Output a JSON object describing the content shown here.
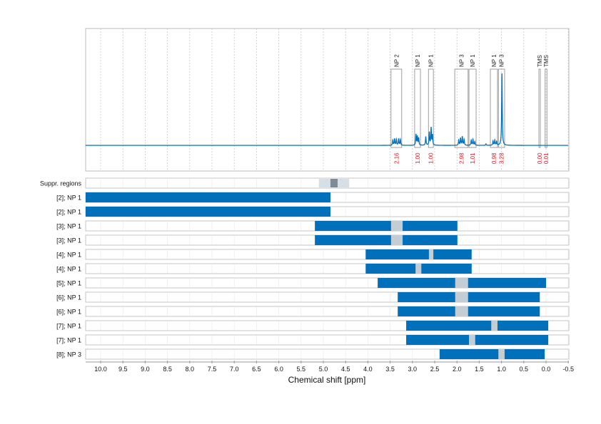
{
  "chart_data": {
    "type": "line",
    "xlabel": "Chemical shift [ppm]",
    "xlim": [
      10.34,
      -0.5
    ],
    "x_reversed": true,
    "x_ticks": [
      "10.0",
      "9.5",
      "9.0",
      "8.5",
      "8.0",
      "7.5",
      "7.0",
      "6.5",
      "6.0",
      "5.5",
      "5.0",
      "4.5",
      "4.0",
      "3.5",
      "3.0",
      "2.5",
      "2.0",
      "1.5",
      "1.0",
      "0.5",
      "0.0",
      "-0.5"
    ],
    "grid": true,
    "colors": {
      "spectrum": "#0070bb",
      "bar": "#0070bb",
      "gap": "#c3cdd4",
      "suppr_light": "#d6dee6",
      "suppr_dark": "#7b8b97",
      "integral": "#e8101a"
    },
    "spectrum_peaks": [
      {
        "ppm": 3.44,
        "height": 0.07
      },
      {
        "ppm": 3.4,
        "height": 0.09
      },
      {
        "ppm": 3.36,
        "height": 0.08
      },
      {
        "ppm": 3.31,
        "height": 0.09
      },
      {
        "ppm": 3.27,
        "height": 0.08
      },
      {
        "ppm": 2.92,
        "height": 0.15
      },
      {
        "ppm": 2.89,
        "height": 0.12
      },
      {
        "ppm": 2.86,
        "height": 0.1
      },
      {
        "ppm": 2.7,
        "height": 0.12
      },
      {
        "ppm": 2.62,
        "height": 0.18
      },
      {
        "ppm": 2.58,
        "height": 0.24
      },
      {
        "ppm": 2.55,
        "height": 0.14
      },
      {
        "ppm": 1.96,
        "height": 0.07
      },
      {
        "ppm": 1.92,
        "height": 0.1
      },
      {
        "ppm": 1.88,
        "height": 0.12
      },
      {
        "ppm": 1.84,
        "height": 0.08
      },
      {
        "ppm": 1.68,
        "height": 0.07
      },
      {
        "ppm": 1.64,
        "height": 0.08
      },
      {
        "ppm": 1.6,
        "height": 0.05
      },
      {
        "ppm": 1.35,
        "height": 0.02
      },
      {
        "ppm": 1.19,
        "height": 0.06
      },
      {
        "ppm": 1.15,
        "height": 0.07
      },
      {
        "ppm": 1.11,
        "height": 0.05
      },
      {
        "ppm": 0.99,
        "height": 1.0
      }
    ],
    "integration_regions": [
      {
        "label": "NP 2",
        "from": 3.48,
        "to": 3.24,
        "integral": "2.16"
      },
      {
        "label": "NP 1",
        "from": 2.95,
        "to": 2.82,
        "integral": "1.00"
      },
      {
        "label": "NP 1",
        "from": 2.64,
        "to": 2.53,
        "integral": "1.00"
      },
      {
        "label": "NP 3",
        "from": 2.05,
        "to": 1.75,
        "integral": "2.98"
      },
      {
        "label": "NP 1",
        "from": 1.73,
        "to": 1.57,
        "integral": "1.01"
      },
      {
        "label": "NP 1",
        "from": 1.25,
        "to": 1.09,
        "integral": "0.98"
      },
      {
        "label": "NP 3",
        "from": 1.07,
        "to": 0.93,
        "integral": "3.28"
      },
      {
        "label": "TMS",
        "from": 0.16,
        "to": 0.13,
        "integral": "0.00"
      },
      {
        "label": "TMS",
        "from": 0.02,
        "to": -0.02,
        "integral": "0.01"
      }
    ],
    "suppressed_regions": {
      "label": "Suppr. regions",
      "outer": [
        5.1,
        4.42
      ],
      "inner": [
        4.84,
        4.68
      ]
    },
    "rows": [
      {
        "label": "[2]; NP 1",
        "range": [
          10.34,
          4.84
        ],
        "gap": null
      },
      {
        "label": "[2]; NP 1",
        "range": [
          10.34,
          4.84
        ],
        "gap": null
      },
      {
        "label": "[3]; NP 1",
        "range": [
          5.19,
          1.99
        ],
        "gap": [
          3.48,
          3.22
        ]
      },
      {
        "label": "[3]; NP 1",
        "range": [
          5.19,
          1.99
        ],
        "gap": [
          3.48,
          3.22
        ]
      },
      {
        "label": "[4]; NP 1",
        "range": [
          4.05,
          1.67
        ],
        "gap": [
          2.63,
          2.53
        ]
      },
      {
        "label": "[4]; NP 1",
        "range": [
          4.05,
          1.67
        ],
        "gap": [
          2.93,
          2.8
        ]
      },
      {
        "label": "[5]; NP 1",
        "range": [
          3.78,
          0.0
        ],
        "gap": [
          2.04,
          1.75
        ]
      },
      {
        "label": "[6]; NP 1",
        "range": [
          3.33,
          0.14
        ],
        "gap": [
          2.04,
          1.75
        ]
      },
      {
        "label": "[6]; NP 1",
        "range": [
          3.33,
          0.14
        ],
        "gap": [
          2.04,
          1.75
        ]
      },
      {
        "label": "[7]; NP 1",
        "range": [
          3.14,
          -0.05
        ],
        "gap": [
          1.23,
          1.09
        ]
      },
      {
        "label": "[7]; NP 1",
        "range": [
          3.14,
          -0.05
        ],
        "gap": [
          1.73,
          1.59
        ]
      },
      {
        "label": "[8]; NP 3",
        "range": [
          2.39,
          0.03
        ],
        "gap": [
          1.07,
          0.93
        ]
      }
    ]
  }
}
